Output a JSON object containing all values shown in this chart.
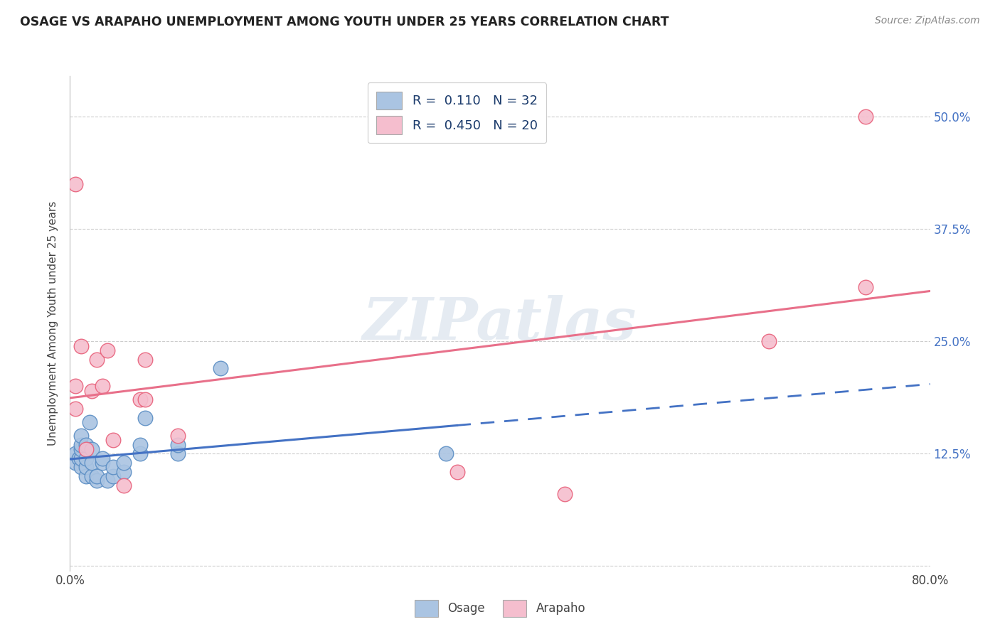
{
  "title": "OSAGE VS ARAPAHO UNEMPLOYMENT AMONG YOUTH UNDER 25 YEARS CORRELATION CHART",
  "source": "Source: ZipAtlas.com",
  "ylabel": "Unemployment Among Youth under 25 years",
  "xmin": 0.0,
  "xmax": 0.8,
  "ymin": -0.005,
  "ymax": 0.545,
  "xticks": [
    0.0,
    0.1,
    0.2,
    0.3,
    0.4,
    0.5,
    0.6,
    0.7,
    0.8
  ],
  "xtick_labels": [
    "0.0%",
    "",
    "",
    "",
    "",
    "",
    "",
    "",
    "80.0%"
  ],
  "yticks": [
    0.0,
    0.125,
    0.25,
    0.375,
    0.5
  ],
  "ytick_labels": [
    "",
    "12.5%",
    "25.0%",
    "37.5%",
    "50.0%"
  ],
  "osage_x": [
    0.005,
    0.005,
    0.008,
    0.01,
    0.01,
    0.01,
    0.01,
    0.01,
    0.015,
    0.015,
    0.015,
    0.015,
    0.018,
    0.02,
    0.02,
    0.02,
    0.025,
    0.025,
    0.03,
    0.03,
    0.035,
    0.04,
    0.04,
    0.05,
    0.05,
    0.065,
    0.065,
    0.07,
    0.1,
    0.1,
    0.14,
    0.35
  ],
  "osage_y": [
    0.115,
    0.125,
    0.12,
    0.11,
    0.12,
    0.13,
    0.135,
    0.145,
    0.1,
    0.11,
    0.12,
    0.135,
    0.16,
    0.1,
    0.115,
    0.13,
    0.095,
    0.1,
    0.115,
    0.12,
    0.095,
    0.1,
    0.11,
    0.105,
    0.115,
    0.125,
    0.135,
    0.165,
    0.125,
    0.135,
    0.22,
    0.125
  ],
  "arapaho_x": [
    0.005,
    0.005,
    0.005,
    0.01,
    0.015,
    0.02,
    0.025,
    0.03,
    0.035,
    0.04,
    0.05,
    0.065,
    0.07,
    0.07,
    0.1,
    0.36,
    0.46,
    0.65,
    0.74,
    0.74
  ],
  "arapaho_y": [
    0.425,
    0.2,
    0.175,
    0.245,
    0.13,
    0.195,
    0.23,
    0.2,
    0.24,
    0.14,
    0.09,
    0.185,
    0.185,
    0.23,
    0.145,
    0.105,
    0.08,
    0.25,
    0.31,
    0.5
  ],
  "osage_color": "#aac4e2",
  "arapaho_color": "#f5bece",
  "osage_edge_color": "#5b8ec4",
  "arapaho_edge_color": "#e8607a",
  "osage_line_color": "#4472c4",
  "arapaho_line_color": "#e8708a",
  "R_osage": "0.110",
  "N_osage": "32",
  "R_arapaho": "0.450",
  "N_arapaho": "20",
  "watermark": "ZIPatlas",
  "watermark_color": "#d0dce8"
}
